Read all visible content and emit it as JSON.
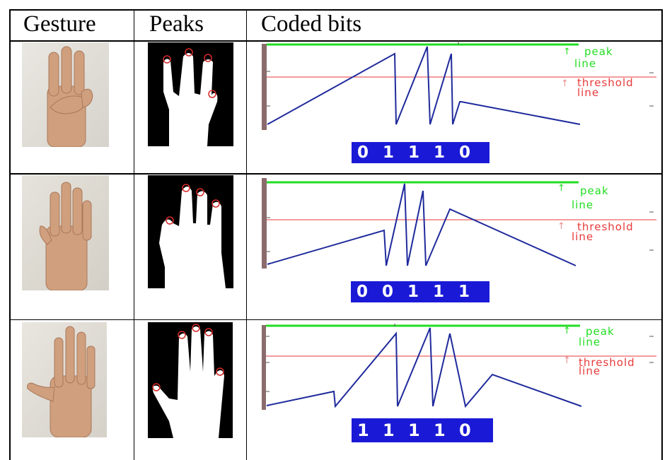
{
  "table": {
    "headers": [
      "Gesture",
      "Peaks",
      "Coded bits"
    ],
    "rows": [
      {
        "gesture": "three fingers raised (index, middle, ring)",
        "bits": [
          "0",
          "1",
          "1",
          "1",
          "0"
        ]
      },
      {
        "gesture": "four fingers raised",
        "bits": [
          "0",
          "0",
          "1",
          "1",
          "1"
        ]
      },
      {
        "gesture": "open palm, five fingers",
        "bits": [
          "1",
          "1",
          "1",
          "1",
          "0"
        ]
      }
    ]
  },
  "signal_legend": {
    "peak_line": [
      "peak",
      "line"
    ],
    "threshold_line": [
      "threshold",
      "line"
    ]
  },
  "colors": {
    "peak_line": "#22dd22",
    "threshold_line": "#e83a3a",
    "signal": "#1f2a9c",
    "bits_bg": "#1a1ad6",
    "left_axis": "#8b6b6b",
    "skin": "#cf9f7e",
    "background_photo": "#e8e6e0"
  },
  "icons": [
    "up-arrow-icon"
  ]
}
